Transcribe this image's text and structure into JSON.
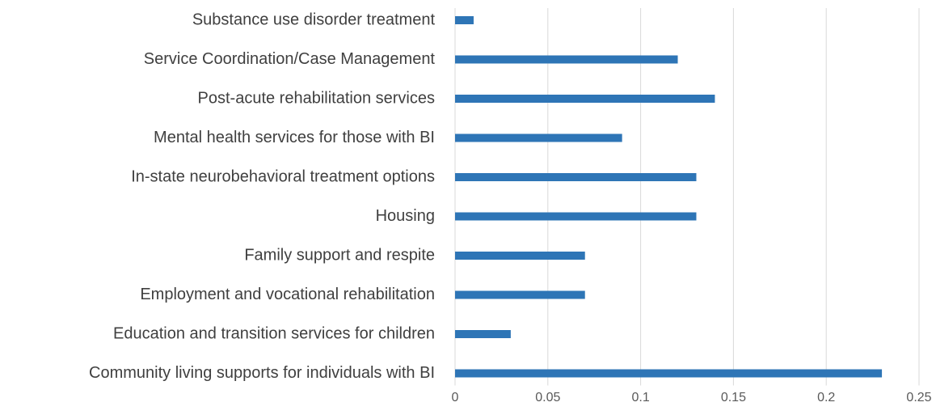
{
  "chart_data": {
    "type": "bar",
    "orientation": "horizontal",
    "categories": [
      "Substance use disorder treatment",
      "Service Coordination/Case Management",
      "Post-acute rehabilitation services",
      "Mental health services for those with BI",
      "In-state neurobehavioral treatment options",
      "Housing",
      "Family support and respite",
      "Employment and vocational rehabilitation",
      "Education and transition services for children",
      "Community living supports for individuals with BI"
    ],
    "values": [
      0.01,
      0.12,
      0.14,
      0.09,
      0.13,
      0.13,
      0.07,
      0.07,
      0.03,
      0.23
    ],
    "x_ticks": [
      "0",
      "0.05",
      "0.1",
      "0.15",
      "0.2",
      "0.25"
    ],
    "xlim": [
      0,
      0.25
    ],
    "grid": "vertical",
    "legend": "none",
    "bar_color": "#2e75b6",
    "gridline_color": "#d9d9d9",
    "label_color": "#3f3f3f",
    "tick_color": "#595959"
  }
}
